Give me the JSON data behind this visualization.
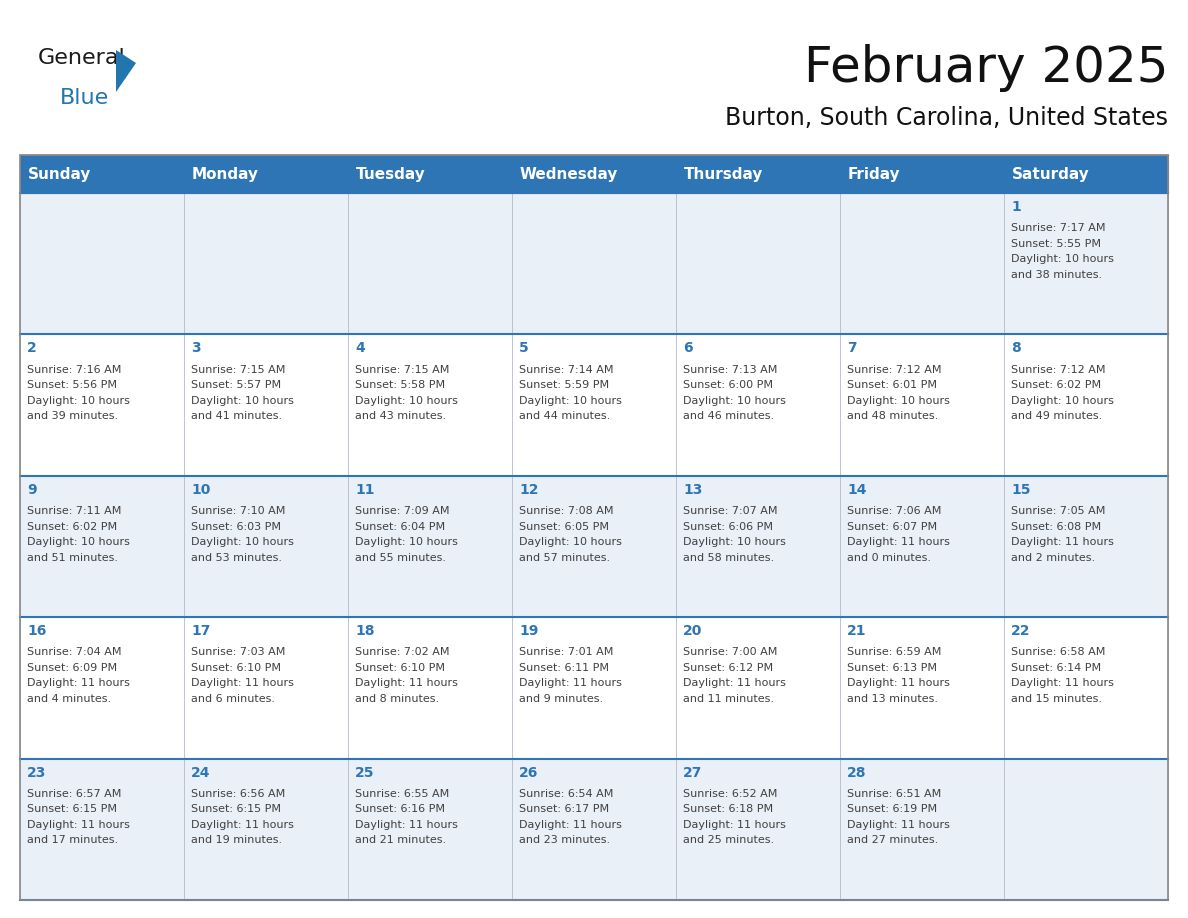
{
  "title": "February 2025",
  "subtitle": "Burton, South Carolina, United States",
  "days_of_week": [
    "Sunday",
    "Monday",
    "Tuesday",
    "Wednesday",
    "Thursday",
    "Friday",
    "Saturday"
  ],
  "header_bg": "#2e75b6",
  "header_text": "#ffffff",
  "cell_bg_row0": "#eaf0f8",
  "cell_bg_row1": "#ffffff",
  "cell_bg_row2": "#eaf0f8",
  "cell_bg_row3": "#ffffff",
  "cell_bg_row4": "#eaf0f8",
  "row_divider_color": "#2e75b6",
  "cell_border_color": "#b0b8c8",
  "day_number_color": "#2e75b6",
  "text_color": "#404040",
  "logo_general_color": "#1a1a1a",
  "logo_blue_color": "#2176ae",
  "calendar_data": [
    {
      "day": 1,
      "col": 6,
      "row": 0,
      "sunrise": "7:17 AM",
      "sunset": "5:55 PM",
      "daylight": "10 hours and 38 minutes."
    },
    {
      "day": 2,
      "col": 0,
      "row": 1,
      "sunrise": "7:16 AM",
      "sunset": "5:56 PM",
      "daylight": "10 hours and 39 minutes."
    },
    {
      "day": 3,
      "col": 1,
      "row": 1,
      "sunrise": "7:15 AM",
      "sunset": "5:57 PM",
      "daylight": "10 hours and 41 minutes."
    },
    {
      "day": 4,
      "col": 2,
      "row": 1,
      "sunrise": "7:15 AM",
      "sunset": "5:58 PM",
      "daylight": "10 hours and 43 minutes."
    },
    {
      "day": 5,
      "col": 3,
      "row": 1,
      "sunrise": "7:14 AM",
      "sunset": "5:59 PM",
      "daylight": "10 hours and 44 minutes."
    },
    {
      "day": 6,
      "col": 4,
      "row": 1,
      "sunrise": "7:13 AM",
      "sunset": "6:00 PM",
      "daylight": "10 hours and 46 minutes."
    },
    {
      "day": 7,
      "col": 5,
      "row": 1,
      "sunrise": "7:12 AM",
      "sunset": "6:01 PM",
      "daylight": "10 hours and 48 minutes."
    },
    {
      "day": 8,
      "col": 6,
      "row": 1,
      "sunrise": "7:12 AM",
      "sunset": "6:02 PM",
      "daylight": "10 hours and 49 minutes."
    },
    {
      "day": 9,
      "col": 0,
      "row": 2,
      "sunrise": "7:11 AM",
      "sunset": "6:02 PM",
      "daylight": "10 hours and 51 minutes."
    },
    {
      "day": 10,
      "col": 1,
      "row": 2,
      "sunrise": "7:10 AM",
      "sunset": "6:03 PM",
      "daylight": "10 hours and 53 minutes."
    },
    {
      "day": 11,
      "col": 2,
      "row": 2,
      "sunrise": "7:09 AM",
      "sunset": "6:04 PM",
      "daylight": "10 hours and 55 minutes."
    },
    {
      "day": 12,
      "col": 3,
      "row": 2,
      "sunrise": "7:08 AM",
      "sunset": "6:05 PM",
      "daylight": "10 hours and 57 minutes."
    },
    {
      "day": 13,
      "col": 4,
      "row": 2,
      "sunrise": "7:07 AM",
      "sunset": "6:06 PM",
      "daylight": "10 hours and 58 minutes."
    },
    {
      "day": 14,
      "col": 5,
      "row": 2,
      "sunrise": "7:06 AM",
      "sunset": "6:07 PM",
      "daylight": "11 hours and 0 minutes."
    },
    {
      "day": 15,
      "col": 6,
      "row": 2,
      "sunrise": "7:05 AM",
      "sunset": "6:08 PM",
      "daylight": "11 hours and 2 minutes."
    },
    {
      "day": 16,
      "col": 0,
      "row": 3,
      "sunrise": "7:04 AM",
      "sunset": "6:09 PM",
      "daylight": "11 hours and 4 minutes."
    },
    {
      "day": 17,
      "col": 1,
      "row": 3,
      "sunrise": "7:03 AM",
      "sunset": "6:10 PM",
      "daylight": "11 hours and 6 minutes."
    },
    {
      "day": 18,
      "col": 2,
      "row": 3,
      "sunrise": "7:02 AM",
      "sunset": "6:10 PM",
      "daylight": "11 hours and 8 minutes."
    },
    {
      "day": 19,
      "col": 3,
      "row": 3,
      "sunrise": "7:01 AM",
      "sunset": "6:11 PM",
      "daylight": "11 hours and 9 minutes."
    },
    {
      "day": 20,
      "col": 4,
      "row": 3,
      "sunrise": "7:00 AM",
      "sunset": "6:12 PM",
      "daylight": "11 hours and 11 minutes."
    },
    {
      "day": 21,
      "col": 5,
      "row": 3,
      "sunrise": "6:59 AM",
      "sunset": "6:13 PM",
      "daylight": "11 hours and 13 minutes."
    },
    {
      "day": 22,
      "col": 6,
      "row": 3,
      "sunrise": "6:58 AM",
      "sunset": "6:14 PM",
      "daylight": "11 hours and 15 minutes."
    },
    {
      "day": 23,
      "col": 0,
      "row": 4,
      "sunrise": "6:57 AM",
      "sunset": "6:15 PM",
      "daylight": "11 hours and 17 minutes."
    },
    {
      "day": 24,
      "col": 1,
      "row": 4,
      "sunrise": "6:56 AM",
      "sunset": "6:15 PM",
      "daylight": "11 hours and 19 minutes."
    },
    {
      "day": 25,
      "col": 2,
      "row": 4,
      "sunrise": "6:55 AM",
      "sunset": "6:16 PM",
      "daylight": "11 hours and 21 minutes."
    },
    {
      "day": 26,
      "col": 3,
      "row": 4,
      "sunrise": "6:54 AM",
      "sunset": "6:17 PM",
      "daylight": "11 hours and 23 minutes."
    },
    {
      "day": 27,
      "col": 4,
      "row": 4,
      "sunrise": "6:52 AM",
      "sunset": "6:18 PM",
      "daylight": "11 hours and 25 minutes."
    },
    {
      "day": 28,
      "col": 5,
      "row": 4,
      "sunrise": "6:51 AM",
      "sunset": "6:19 PM",
      "daylight": "11 hours and 27 minutes."
    }
  ],
  "num_rows": 5,
  "num_cols": 7
}
